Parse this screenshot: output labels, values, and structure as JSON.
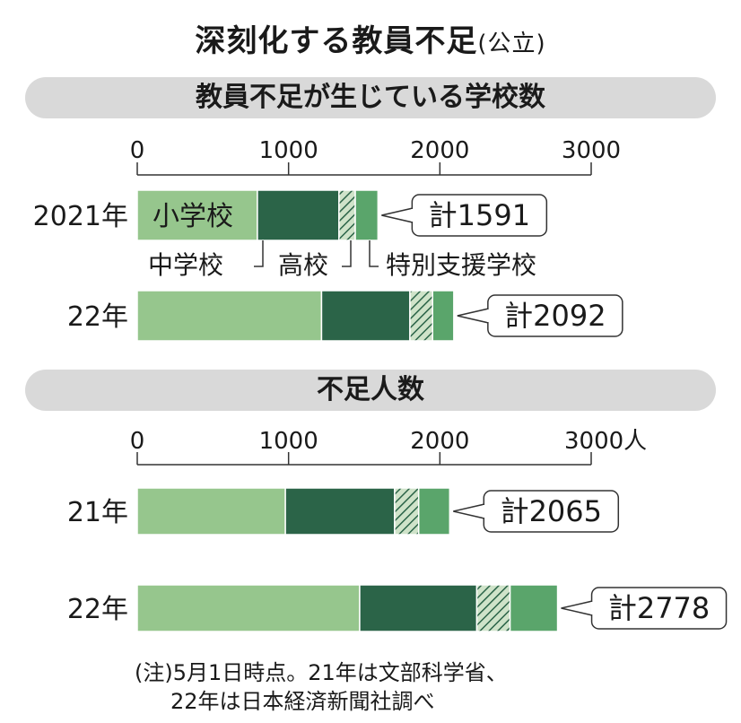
{
  "title": "深刻化する教員不足",
  "title_sub": "(公立)",
  "colors": {
    "elementary": "#96c68d",
    "junior_high": "#2b6448",
    "high_school_hatch": "#5f9c6b",
    "special_support": "#5aa56b",
    "band": "#d9d9d9"
  },
  "chart_data": [
    {
      "type": "bar",
      "orientation": "horizontal",
      "stacked": true,
      "title": "教員不足が生じている学校数",
      "xlim": [
        0,
        3000
      ],
      "ticks": [
        "0",
        "1000",
        "2000",
        "3000"
      ],
      "grid": false,
      "categories": [
        "2021年",
        "22年"
      ],
      "series": [
        {
          "name": "小学校",
          "values": [
            794,
            1218
          ]
        },
        {
          "name": "中学校",
          "values": [
            539,
            584
          ]
        },
        {
          "name": "高校",
          "values": [
            108,
            150
          ]
        },
        {
          "name": "特別支援学校",
          "values": [
            150,
            140
          ]
        }
      ],
      "totals": [
        "計1591",
        "計2092"
      ],
      "inner_label": "小学校",
      "legend_labels": [
        "中学校",
        "高校",
        "特別支援学校"
      ]
    },
    {
      "type": "bar",
      "orientation": "horizontal",
      "stacked": true,
      "title": "不足人数",
      "xlim": [
        0,
        3000
      ],
      "ticks": [
        "0",
        "1000",
        "2000",
        "3000人"
      ],
      "grid": false,
      "categories": [
        "21年",
        "22年"
      ],
      "series": [
        {
          "name": "小学校",
          "values": [
            979,
            1470
          ]
        },
        {
          "name": "中学校",
          "values": [
            722,
            774
          ]
        },
        {
          "name": "高校",
          "values": [
            159,
            220
          ]
        },
        {
          "name": "特別支援学校",
          "values": [
            205,
            314
          ]
        }
      ],
      "totals": [
        "計2065",
        "計2778"
      ]
    }
  ],
  "note": {
    "line1": "(注)5月1日時点。21年は文部科学省、",
    "line2": "22年は日本経済新聞社調べ"
  }
}
